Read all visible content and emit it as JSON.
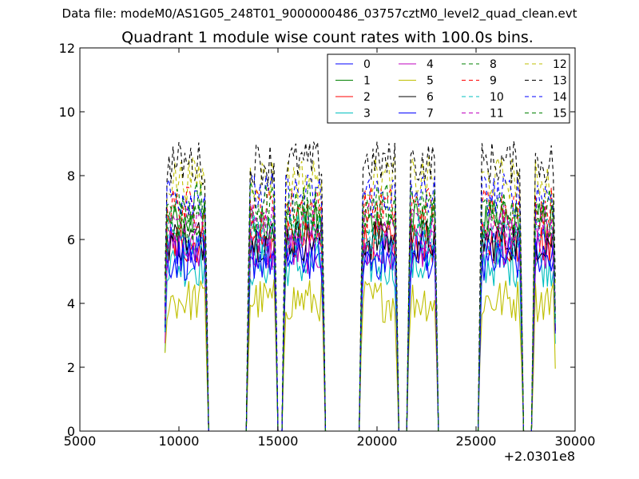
{
  "header": {
    "suptitle": "Data file: modeM0/AS1G05_248T01_9000000486_03757cztM0_level2_quad_clean.evt"
  },
  "chart_data": {
    "type": "line",
    "title": "Quadrant 1 module wise count rates with 100.0s bins.",
    "xlabel": "",
    "ylabel": "",
    "x_offset_label": "+2.0301e8",
    "xlim": [
      5000,
      30000
    ],
    "ylim": [
      0,
      12
    ],
    "xticks": [
      5000,
      10000,
      15000,
      20000,
      25000,
      30000
    ],
    "xtick_labels": [
      "5000",
      "10000",
      "15000",
      "20000",
      "25000",
      "30000"
    ],
    "yticks": [
      0,
      2,
      4,
      6,
      8,
      10,
      12
    ],
    "ytick_labels": [
      "0",
      "2",
      "4",
      "6",
      "8",
      "10",
      "12"
    ],
    "bin_width": 100,
    "segments": [
      {
        "start": 9300,
        "end": 11400
      },
      {
        "start": 13500,
        "end": 14900
      },
      {
        "start": 15300,
        "end": 17300
      },
      {
        "start": 19200,
        "end": 21000
      },
      {
        "start": 21600,
        "end": 23000
      },
      {
        "start": 25200,
        "end": 27300
      },
      {
        "start": 27900,
        "end": 29000
      }
    ],
    "legend": {
      "location": "upper right",
      "columns": 4
    },
    "series": [
      {
        "name": "0",
        "color": "#0000ff",
        "style": "solid",
        "level": 5.7
      },
      {
        "name": "1",
        "color": "#008000",
        "style": "solid",
        "level": 6.5
      },
      {
        "name": "2",
        "color": "#ff0000",
        "style": "solid",
        "level": 5.9
      },
      {
        "name": "3",
        "color": "#00bfbf",
        "style": "solid",
        "level": 5.2
      },
      {
        "name": "4",
        "color": "#bf00bf",
        "style": "solid",
        "level": 5.6
      },
      {
        "name": "5",
        "color": "#bfbf00",
        "style": "solid",
        "level": 4.1
      },
      {
        "name": "6",
        "color": "#000000",
        "style": "solid",
        "level": 6.0
      },
      {
        "name": "7",
        "color": "#0000ff",
        "style": "solid",
        "level": 5.4
      },
      {
        "name": "8",
        "color": "#008000",
        "style": "dashed",
        "level": 6.6
      },
      {
        "name": "9",
        "color": "#ff0000",
        "style": "dashed",
        "level": 7.0
      },
      {
        "name": "10",
        "color": "#00bfbf",
        "style": "dashed",
        "level": 6.1
      },
      {
        "name": "11",
        "color": "#bf00bf",
        "style": "dashed",
        "level": 6.4
      },
      {
        "name": "12",
        "color": "#bfbf00",
        "style": "dashed",
        "level": 7.9
      },
      {
        "name": "13",
        "color": "#000000",
        "style": "dashed",
        "level": 8.4
      },
      {
        "name": "14",
        "color": "#0000ff",
        "style": "dashed",
        "level": 7.4
      },
      {
        "name": "15",
        "color": "#008000",
        "style": "dashed",
        "level": 7.1
      }
    ]
  }
}
